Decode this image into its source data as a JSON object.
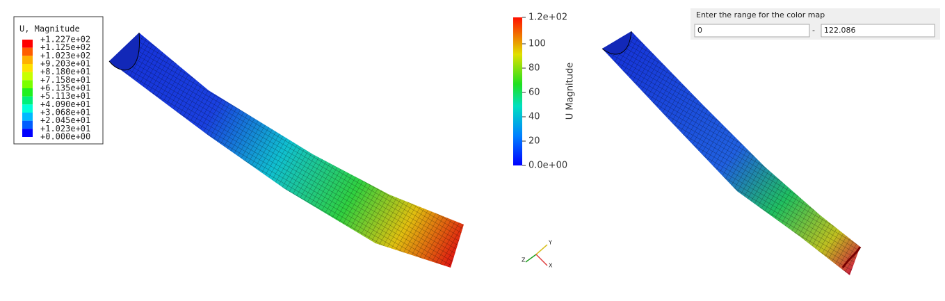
{
  "left_view": {
    "legend": {
      "title": "U, Magnitude",
      "labels": [
        "+1.227e+02",
        "+1.125e+02",
        "+1.023e+02",
        "+9.203e+01",
        "+8.180e+01",
        "+7.158e+01",
        "+6.135e+01",
        "+5.113e+01",
        "+4.090e+01",
        "+3.068e+01",
        "+2.045e+01",
        "+1.023e+01",
        "+0.000e+00"
      ]
    }
  },
  "right_view": {
    "colorbar": {
      "title": "U Magnitude",
      "ticks": [
        "1.2e+02",
        "100",
        "80",
        "60",
        "40",
        "20",
        "0.0e+00"
      ]
    },
    "axes_triad": [
      "Y",
      "Z",
      "X"
    ],
    "range_panel": {
      "prompt": "Enter the range for the color map",
      "min": "0",
      "separator": "-",
      "max": "122.086"
    }
  }
}
